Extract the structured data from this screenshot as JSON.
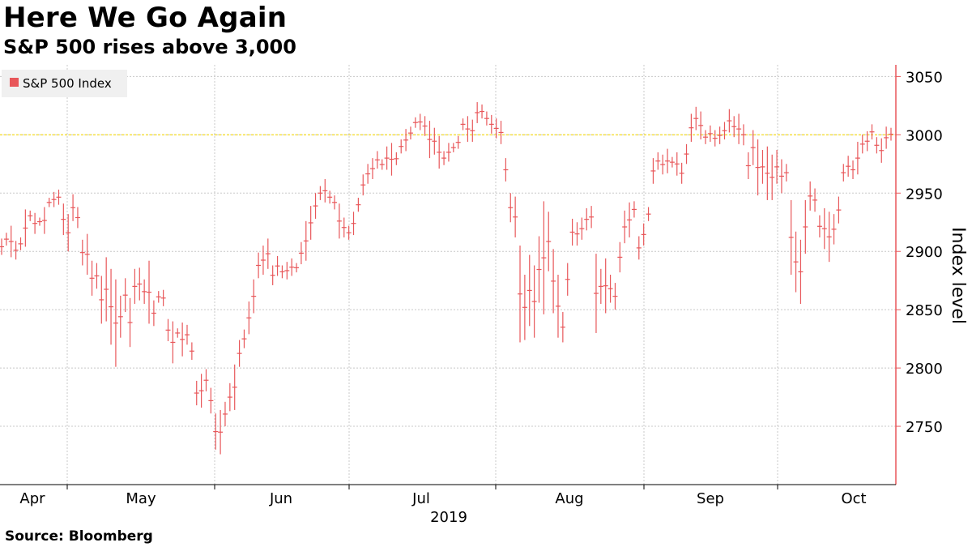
{
  "title": "Here We Go Again",
  "subtitle": "S&P 500 rises above 3,000",
  "source": "Source: Bloomberg",
  "colors": {
    "series": "#e8575a",
    "reference": "#f5e042",
    "grid": "#c8c8c8",
    "axis": "#e8575a"
  },
  "chart_data": {
    "type": "ohlc",
    "ylabel": "Index level",
    "ylim": [
      2700,
      3060
    ],
    "yticks": [
      2750,
      2800,
      2850,
      2900,
      2950,
      3000,
      3050
    ],
    "x_months": [
      "Apr",
      "May",
      "Jun",
      "Jul",
      "Aug",
      "Sep",
      "Oct"
    ],
    "x_year": "2019",
    "grid": true,
    "legend": {
      "position": "top-left",
      "entries": [
        "S&P 500 Index"
      ]
    },
    "reference_line": 3000,
    "series": [
      {
        "name": "S&P 500 Index",
        "bars": [
          [
            2911,
            2897
          ],
          [
            2916,
            2905
          ],
          [
            2922,
            2895
          ],
          [
            2909,
            2893
          ],
          [
            2912,
            2901
          ],
          [
            2936,
            2904
          ],
          [
            2935,
            2926
          ],
          [
            2933,
            2915
          ],
          [
            2929,
            2922
          ],
          [
            2938,
            2915
          ],
          [
            2946,
            2938
          ],
          [
            2951,
            2938
          ],
          [
            2953,
            2940
          ],
          [
            2941,
            2914
          ],
          [
            2932,
            2900
          ],
          [
            2949,
            2926
          ],
          [
            2938,
            2920
          ],
          [
            2910,
            2888
          ],
          [
            2915,
            2880
          ],
          [
            2892,
            2862
          ],
          [
            2890,
            2868
          ],
          [
            2879,
            2838
          ],
          [
            2895,
            2840
          ],
          [
            2885,
            2820
          ],
          [
            2876,
            2801
          ],
          [
            2862,
            2826
          ],
          [
            2877,
            2848
          ],
          [
            2860,
            2818
          ],
          [
            2885,
            2855
          ],
          [
            2886,
            2858
          ],
          [
            2876,
            2855
          ],
          [
            2892,
            2838
          ],
          [
            2858,
            2836
          ],
          [
            2866,
            2856
          ],
          [
            2867,
            2853
          ],
          [
            2842,
            2823
          ],
          [
            2840,
            2804
          ],
          [
            2834,
            2826
          ],
          [
            2839,
            2810
          ],
          [
            2837,
            2820
          ],
          [
            2822,
            2807
          ],
          [
            2789,
            2768
          ],
          [
            2795,
            2766
          ],
          [
            2799,
            2780
          ],
          [
            2783,
            2761
          ],
          [
            2761,
            2730
          ],
          [
            2764,
            2726
          ],
          [
            2771,
            2750
          ],
          [
            2787,
            2763
          ],
          [
            2803,
            2764
          ],
          [
            2824,
            2801
          ],
          [
            2833,
            2817
          ],
          [
            2857,
            2829
          ],
          [
            2876,
            2847
          ],
          [
            2899,
            2877
          ],
          [
            2905,
            2880
          ],
          [
            2911,
            2885
          ],
          [
            2888,
            2871
          ],
          [
            2896,
            2879
          ],
          [
            2888,
            2877
          ],
          [
            2891,
            2876
          ],
          [
            2894,
            2879
          ],
          [
            2890,
            2882
          ],
          [
            2908,
            2889
          ],
          [
            2926,
            2892
          ],
          [
            2939,
            2910
          ],
          [
            2950,
            2928
          ],
          [
            2956,
            2944
          ],
          [
            2962,
            2942
          ],
          [
            2952,
            2941
          ],
          [
            2948,
            2936
          ],
          [
            2941,
            2911
          ],
          [
            2929,
            2912
          ],
          [
            2922,
            2910
          ],
          [
            2934,
            2914
          ],
          [
            2946,
            2934
          ],
          [
            2966,
            2948
          ],
          [
            2975,
            2958
          ],
          [
            2980,
            2962
          ],
          [
            2986,
            2971
          ],
          [
            2979,
            2970
          ],
          [
            2990,
            2970
          ],
          [
            2993,
            2965
          ],
          [
            2985,
            2974
          ],
          [
            2996,
            2984
          ],
          [
            3005,
            2986
          ],
          [
            3007,
            2996
          ],
          [
            3015,
            3006
          ],
          [
            3018,
            3004
          ],
          [
            3016,
            2999
          ],
          [
            3012,
            2980
          ],
          [
            3006,
            2983
          ],
          [
            2999,
            2971
          ],
          [
            2986,
            2974
          ],
          [
            2993,
            2977
          ],
          [
            2993,
            2985
          ],
          [
            2999,
            2988
          ],
          [
            3014,
            3004
          ],
          [
            3016,
            2994
          ],
          [
            3013,
            2994
          ],
          [
            3028,
            3010
          ],
          [
            3026,
            3014
          ],
          [
            3020,
            3008
          ],
          [
            3017,
            3001
          ],
          [
            3014,
            2997
          ],
          [
            3012,
            2992
          ],
          [
            2980,
            2960
          ],
          [
            2950,
            2925
          ],
          [
            2947,
            2912
          ],
          [
            2905,
            2822
          ],
          [
            2880,
            2824
          ],
          [
            2897,
            2836
          ],
          [
            2888,
            2826
          ],
          [
            2913,
            2856
          ],
          [
            2943,
            2846
          ],
          [
            2934,
            2883
          ],
          [
            2902,
            2847
          ],
          [
            2880,
            2826
          ],
          [
            2848,
            2822
          ],
          [
            2890,
            2862
          ],
          [
            2928,
            2905
          ],
          [
            2925,
            2905
          ],
          [
            2929,
            2910
          ],
          [
            2937,
            2918
          ],
          [
            2939,
            2920
          ],
          [
            2898,
            2830
          ],
          [
            2885,
            2855
          ],
          [
            2894,
            2847
          ],
          [
            2880,
            2856
          ],
          [
            2873,
            2850
          ],
          [
            2908,
            2882
          ],
          [
            2935,
            2907
          ],
          [
            2942,
            2912
          ],
          [
            2943,
            2929
          ],
          [
            2913,
            2893
          ],
          [
            2924,
            2905
          ],
          [
            2938,
            2926
          ],
          [
            2980,
            2958
          ],
          [
            2985,
            2970
          ],
          [
            2983,
            2966
          ],
          [
            2988,
            2967
          ],
          [
            2981,
            2972
          ],
          [
            2985,
            2965
          ],
          [
            2976,
            2958
          ],
          [
            2992,
            2975
          ],
          [
            3018,
            2994
          ],
          [
            3024,
            3004
          ],
          [
            3020,
            2996
          ],
          [
            3004,
            2992
          ],
          [
            3008,
            2994
          ],
          [
            3004,
            2990
          ],
          [
            3007,
            2992
          ],
          [
            3011,
            2996
          ],
          [
            3022,
            3002
          ],
          [
            3016,
            2998
          ],
          [
            3018,
            2992
          ],
          [
            3009,
            2991
          ],
          [
            2985,
            2962
          ],
          [
            3004,
            2974
          ],
          [
            2996,
            2948
          ],
          [
            2987,
            2958
          ],
          [
            2990,
            2944
          ],
          [
            2983,
            2944
          ],
          [
            2987,
            2958
          ],
          [
            2979,
            2950
          ],
          [
            2975,
            2960
          ],
          [
            2944,
            2880
          ],
          [
            2917,
            2865
          ],
          [
            2910,
            2855
          ],
          [
            2944,
            2898
          ],
          [
            2960,
            2935
          ],
          [
            2954,
            2934
          ],
          [
            2931,
            2912
          ],
          [
            2937,
            2902
          ],
          [
            2934,
            2891
          ],
          [
            2932,
            2906
          ],
          [
            2947,
            2924
          ],
          [
            2975,
            2960
          ],
          [
            2982,
            2964
          ],
          [
            2978,
            2962
          ],
          [
            2994,
            2966
          ],
          [
            3000,
            2984
          ],
          [
            3003,
            2986
          ],
          [
            3009,
            2996
          ],
          [
            2998,
            2984
          ],
          [
            2997,
            2976
          ],
          [
            3007,
            2988
          ],
          [
            3006,
            2995
          ]
        ]
      }
    ]
  }
}
